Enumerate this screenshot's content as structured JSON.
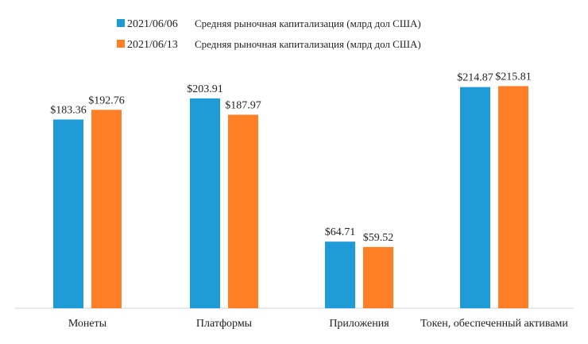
{
  "chart_data": {
    "type": "bar",
    "title": "",
    "xlabel": "",
    "ylabel": "",
    "ylim": [
      0,
      230
    ],
    "grid": false,
    "legend_position": "top-center",
    "categories": [
      "Монеты",
      "Платформы",
      "Приложения",
      "Токен, обеспеченный активами"
    ],
    "series": [
      {
        "name": "2021/06/06",
        "description": "Средняя рыночная капитализация (млрд дол США)",
        "color": "#1F9BD8",
        "values": [
          183.36,
          203.91,
          64.71,
          214.87
        ],
        "labels": [
          "$183.36",
          "$203.91",
          "$64.71",
          "$214.87"
        ]
      },
      {
        "name": "2021/06/13",
        "description": "Средняя рыночная капитализация (млрд дол США)",
        "color": "#FF7F27",
        "values": [
          192.76,
          187.97,
          59.52,
          215.81
        ],
        "labels": [
          "$192.76",
          "$187.97",
          "$59.52",
          "$215.81"
        ]
      }
    ]
  }
}
